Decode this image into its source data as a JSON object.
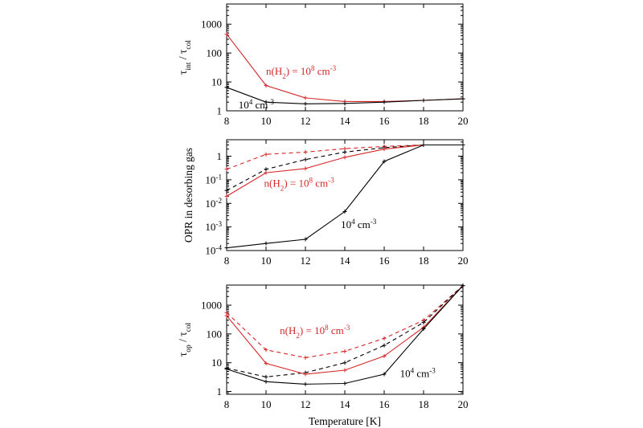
{
  "chart_data": [
    {
      "type": "line",
      "id": "top",
      "yscale": "log",
      "ylim": [
        1,
        5000
      ],
      "xlim": [
        8,
        20
      ],
      "xticks": [
        8,
        10,
        12,
        14,
        16,
        18,
        20
      ],
      "xtick_labels": [
        "8",
        "10",
        "12",
        "14",
        "16",
        "18",
        "20"
      ],
      "yticks": [
        1,
        10,
        100,
        1000
      ],
      "ytick_labels": [
        "1",
        "10",
        "100",
        "1000"
      ],
      "ylabel": {
        "main": "τ",
        "sub": "int",
        "mid": " / τ",
        "sub2": "col"
      },
      "series": [
        {
          "color": "#d62728",
          "dash": "solid",
          "x": [
            8,
            10,
            12,
            14,
            16,
            18,
            20
          ],
          "y": [
            450,
            7.5,
            2.8,
            2.1,
            2.1,
            2.3,
            2.6
          ]
        },
        {
          "color": "#000000",
          "dash": "solid",
          "x": [
            8,
            10,
            12,
            14,
            16,
            18,
            20
          ],
          "y": [
            6.5,
            2.0,
            1.75,
            1.8,
            2.0,
            2.3,
            2.6
          ]
        }
      ],
      "annotations": [
        {
          "color": "#d62728",
          "x": 10.0,
          "y": 18,
          "parts": [
            [
              "n(H",
              ""
            ],
            [
              "2",
              "sub"
            ],
            [
              ") = 10",
              ""
            ],
            [
              "8",
              "sup"
            ],
            [
              " cm",
              ""
            ],
            [
              "-3",
              "sup"
            ]
          ]
        },
        {
          "color": "#000000",
          "x": 8.6,
          "y": 1.2,
          "parts": [
            [
              "10",
              ""
            ],
            [
              "4",
              "sup"
            ],
            [
              " cm",
              ""
            ],
            [
              "-3",
              "sup"
            ]
          ]
        }
      ]
    },
    {
      "type": "line",
      "id": "middle",
      "yscale": "log",
      "ylim": [
        0.0001,
        5
      ],
      "xlim": [
        8,
        20
      ],
      "xticks": [
        8,
        10,
        12,
        14,
        16,
        18,
        20
      ],
      "xtick_labels": [
        "8",
        "10",
        "12",
        "14",
        "16",
        "18",
        "20"
      ],
      "yticks": [
        0.0001,
        0.001,
        0.01,
        0.1,
        1
      ],
      "ytick_labels": [
        [
          "10",
          "-4"
        ],
        [
          "10",
          "-3"
        ],
        [
          "10",
          "-2"
        ],
        [
          "10",
          "-1"
        ],
        [
          "1",
          ""
        ]
      ],
      "ylabel": {
        "text": "OPR in desorbing gas"
      },
      "series": [
        {
          "color": "#d62728",
          "dash": "dashed",
          "x": [
            8,
            10,
            12,
            14,
            16,
            18,
            20
          ],
          "y": [
            0.28,
            1.2,
            1.5,
            2.1,
            2.6,
            3.0,
            3.0
          ]
        },
        {
          "color": "#000000",
          "dash": "dashed",
          "x": [
            8,
            10,
            12,
            14,
            16,
            18,
            20
          ],
          "y": [
            0.035,
            0.28,
            0.72,
            1.5,
            2.3,
            3.0,
            3.0
          ]
        },
        {
          "color": "#d62728",
          "dash": "solid",
          "x": [
            8,
            10,
            12,
            14,
            16,
            18,
            20
          ],
          "y": [
            0.02,
            0.2,
            0.3,
            0.9,
            2.0,
            3.0,
            3.0
          ]
        },
        {
          "color": "#000000",
          "dash": "solid",
          "x": [
            8,
            10,
            12,
            14,
            16,
            18,
            20
          ],
          "y": [
            0.00013,
            0.0002,
            0.0003,
            0.0045,
            0.6,
            3.0,
            3.0
          ]
        }
      ],
      "annotations": [
        {
          "color": "#d62728",
          "x": 9.9,
          "y": 0.05,
          "parts": [
            [
              "n(H",
              ""
            ],
            [
              "2",
              "sub"
            ],
            [
              ") = 10",
              ""
            ],
            [
              "8",
              "sup"
            ],
            [
              " cm",
              ""
            ],
            [
              "-3",
              "sup"
            ]
          ]
        },
        {
          "color": "#000000",
          "x": 13.8,
          "y": 0.0009,
          "parts": [
            [
              "10",
              ""
            ],
            [
              "4",
              "sup"
            ],
            [
              " cm",
              ""
            ],
            [
              "-3",
              "sup"
            ]
          ]
        }
      ]
    },
    {
      "type": "line",
      "id": "bottom",
      "yscale": "log",
      "ylim": [
        0.8,
        5000
      ],
      "xlim": [
        8,
        20
      ],
      "xticks": [
        8,
        10,
        12,
        14,
        16,
        18,
        20
      ],
      "xtick_labels": [
        "8",
        "10",
        "12",
        "14",
        "16",
        "18",
        "20"
      ],
      "yticks": [
        1,
        10,
        100,
        1000
      ],
      "ytick_labels": [
        "1",
        "10",
        "100",
        "1000"
      ],
      "ylabel": {
        "main": "τ",
        "sub": "op",
        "mid": " / τ",
        "sub2": "col"
      },
      "xlabel": "Temperature [K]",
      "series": [
        {
          "color": "#d62728",
          "dash": "dashed",
          "x": [
            8,
            10,
            12,
            14,
            16,
            18,
            20
          ],
          "y": [
            550,
            28,
            15,
            25,
            70,
            300,
            4800
          ]
        },
        {
          "color": "#000000",
          "dash": "dashed",
          "x": [
            8,
            10,
            12,
            14,
            16,
            18,
            20
          ],
          "y": [
            6.5,
            3.2,
            4.5,
            10,
            40,
            250,
            4800
          ]
        },
        {
          "color": "#d62728",
          "dash": "solid",
          "x": [
            8,
            10,
            12,
            14,
            16,
            18,
            20
          ],
          "y": [
            430,
            9.5,
            4.0,
            5.5,
            17,
            170,
            4800
          ]
        },
        {
          "color": "#000000",
          "dash": "solid",
          "x": [
            8,
            10,
            12,
            14,
            16,
            18,
            20
          ],
          "y": [
            6.0,
            2.2,
            1.8,
            1.9,
            4.0,
            150,
            4800
          ]
        }
      ],
      "annotations": [
        {
          "color": "#d62728",
          "x": 10.7,
          "y": 100,
          "parts": [
            [
              "n(H",
              ""
            ],
            [
              "2",
              "sub"
            ],
            [
              ") = 10",
              ""
            ],
            [
              "8",
              "sup"
            ],
            [
              " cm",
              ""
            ],
            [
              "-3",
              "sup"
            ]
          ]
        },
        {
          "color": "#000000",
          "x": 16.8,
          "y": 3.2,
          "parts": [
            [
              "10",
              ""
            ],
            [
              "4",
              "sup"
            ],
            [
              " cm",
              ""
            ],
            [
              "-3",
              "sup"
            ]
          ]
        }
      ]
    }
  ]
}
